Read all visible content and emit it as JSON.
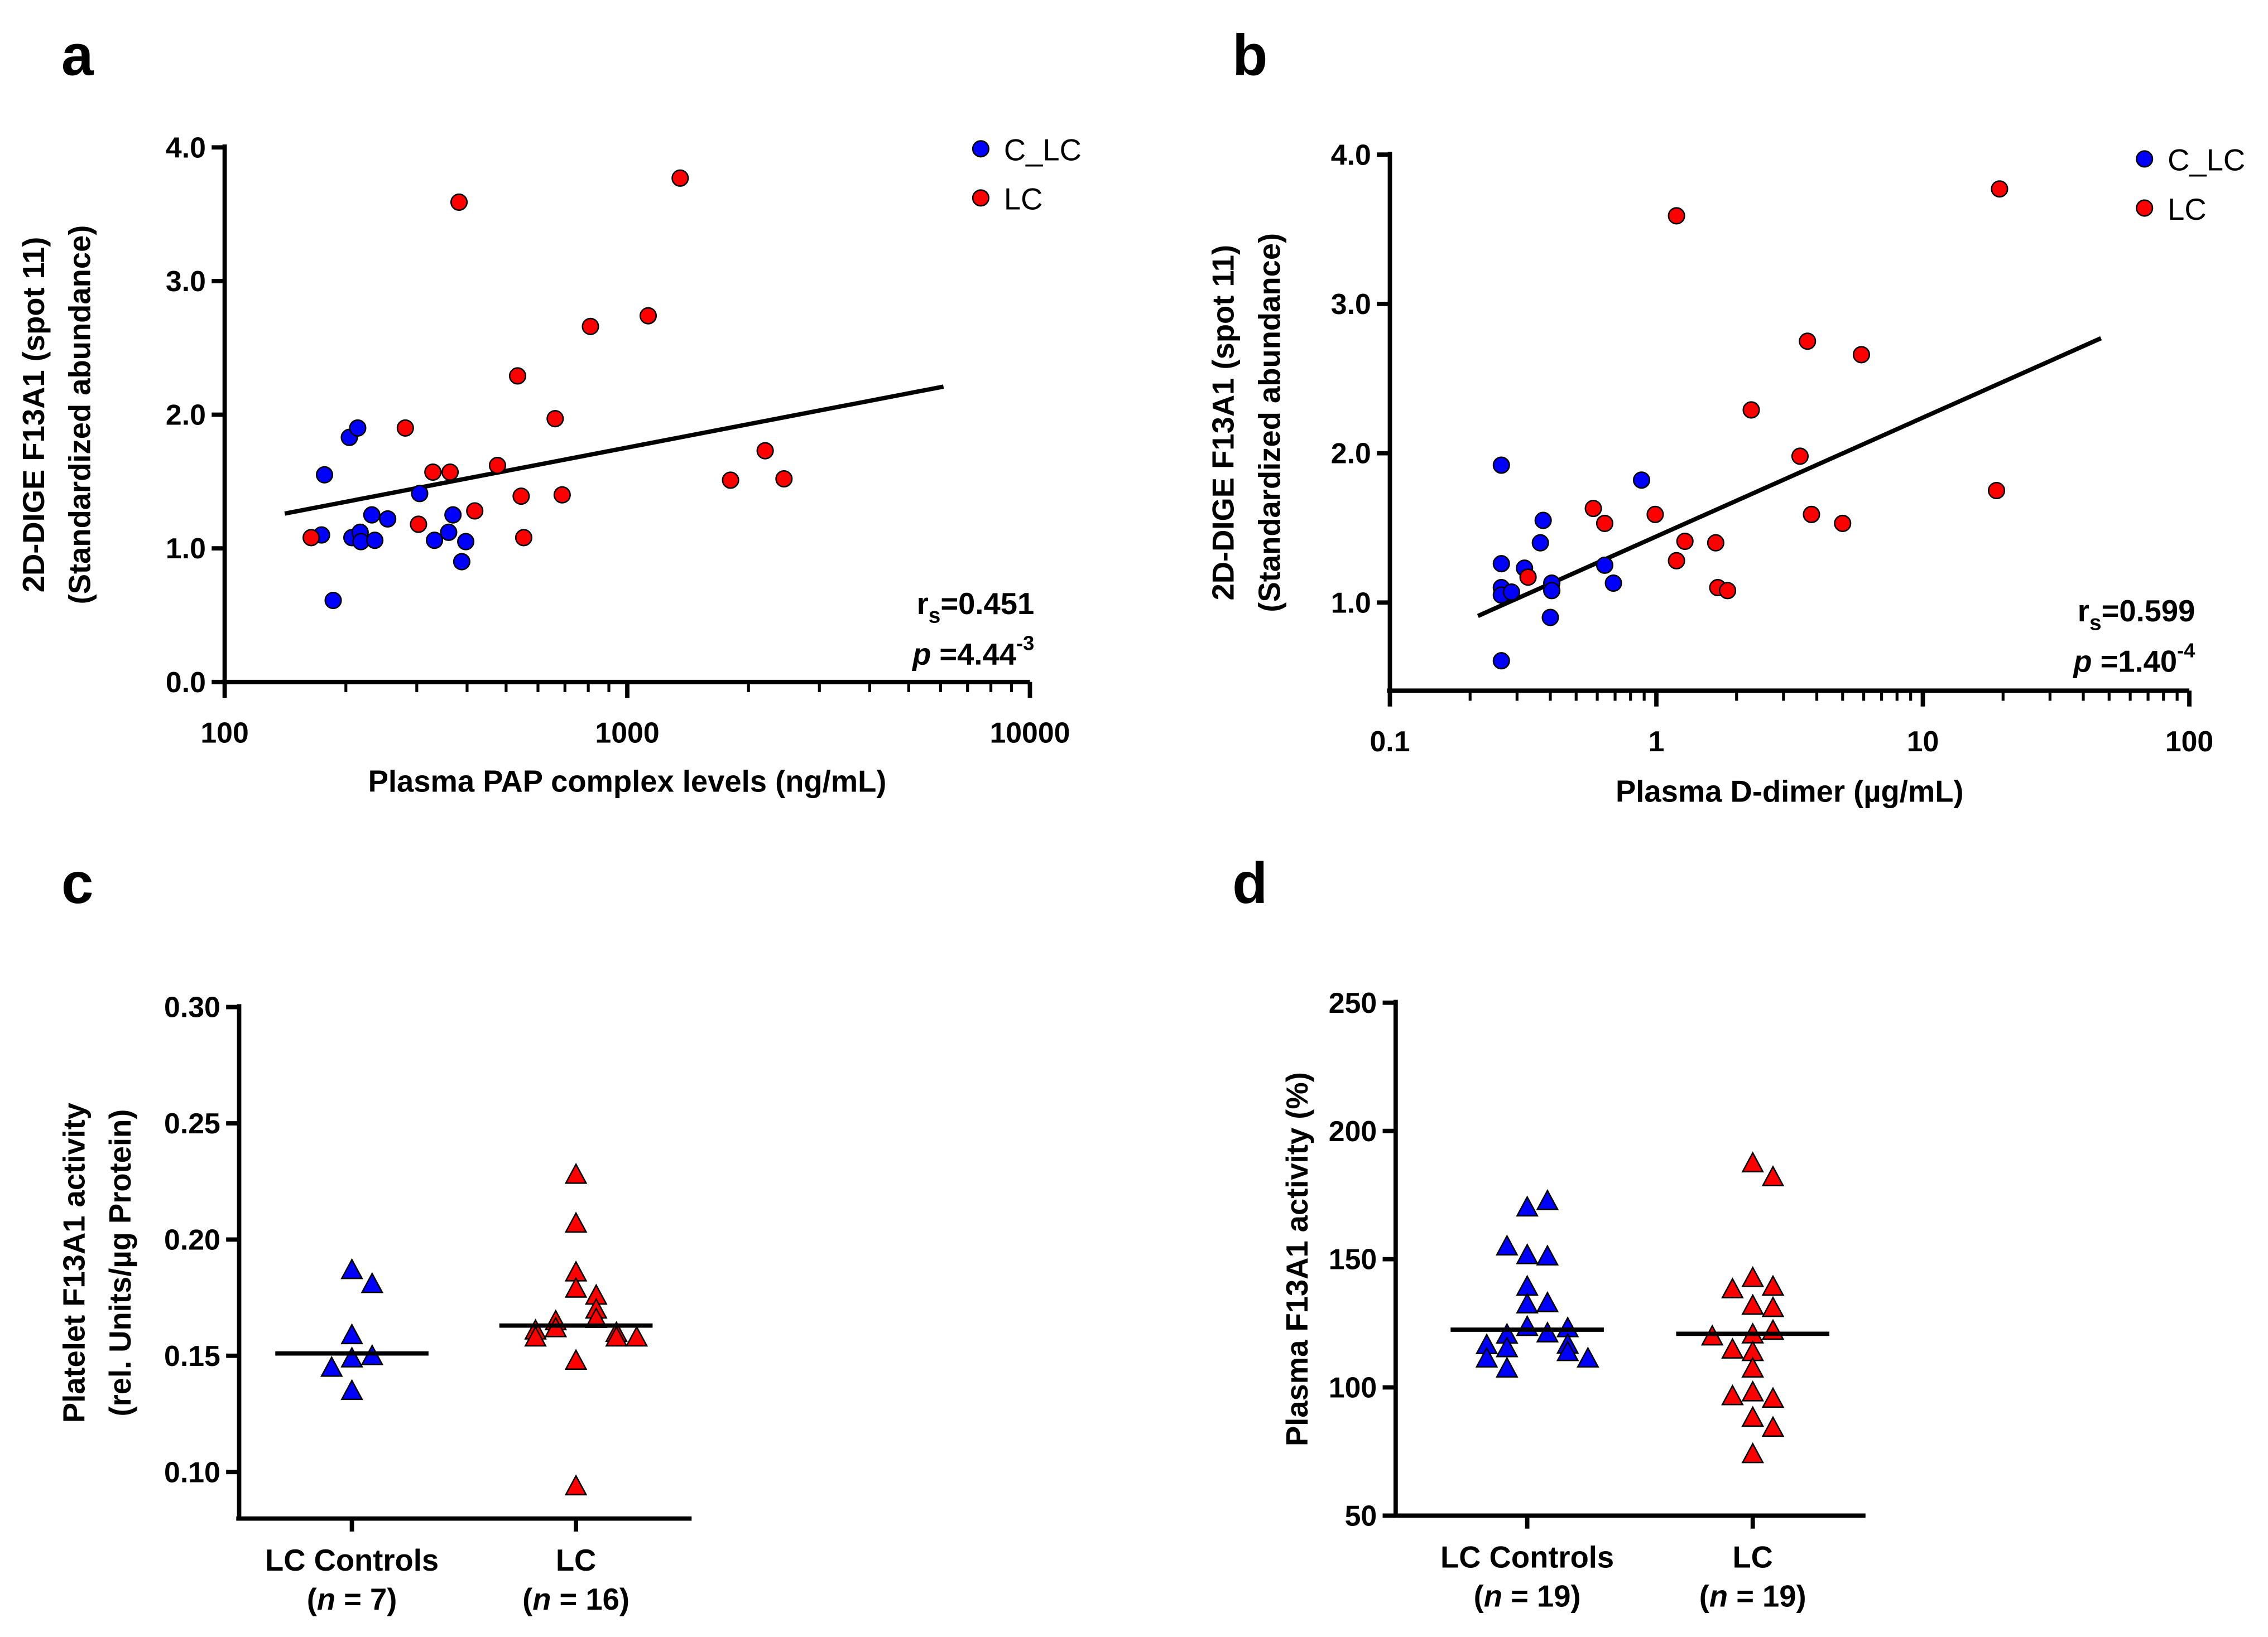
{
  "colors": {
    "control": "#0000ff",
    "lc": "#ff0000",
    "line": "#000000"
  },
  "chart_data": [
    {
      "panel_letter": "a",
      "type": "scatter",
      "xscale": "log",
      "xlim": [
        100,
        10000
      ],
      "ylim": [
        0,
        4.0
      ],
      "xticks": [
        "100",
        "1000",
        "10000"
      ],
      "xtick_values": [
        100,
        1000,
        10000
      ],
      "yticks": [
        "0.0",
        "1.0",
        "2.0",
        "3.0",
        "4.0"
      ],
      "ytick_values": [
        0,
        1,
        2,
        3,
        4
      ],
      "xlabel": "Plasma PAP complex levels (ng/mL)",
      "ylabel_line1": "2D-DIGE F13A1 (spot 11)",
      "ylabel_line2": "(Standardized abundance)",
      "legend": [
        "C_LC",
        "LC"
      ],
      "legend_position": "top-right",
      "stat": {
        "r_prefix": "r",
        "r_sub": "s",
        "r_value": "=0.451",
        "p_prefix": "p",
        "p_value": " =4.44",
        "p_exp": "-3"
      },
      "series": [
        {
          "name": "C_LC",
          "points": [
            [
              177,
              1.55
            ],
            [
              204,
              1.83
            ],
            [
              214,
              1.9
            ],
            [
              174,
              1.1
            ],
            [
              186,
              0.61
            ],
            [
              207,
              1.08
            ],
            [
              217,
              1.12
            ],
            [
              218,
              1.05
            ],
            [
              232,
              1.25
            ],
            [
              236,
              1.06
            ],
            [
              254,
              1.22
            ],
            [
              305,
              1.41
            ],
            [
              332,
              1.06
            ],
            [
              360,
              1.12
            ],
            [
              369,
              1.25
            ],
            [
              388,
              0.9
            ],
            [
              397,
              1.05
            ]
          ]
        },
        {
          "name": "LC",
          "points": [
            [
              164,
              1.08
            ],
            [
              281,
              1.9
            ],
            [
              303,
              1.18
            ],
            [
              329,
              1.57
            ],
            [
              363,
              1.57
            ],
            [
              382,
              3.59
            ],
            [
              418,
              1.28
            ],
            [
              476,
              1.62
            ],
            [
              534,
              2.29
            ],
            [
              545,
              1.39
            ],
            [
              553,
              1.08
            ],
            [
              662,
              1.97
            ],
            [
              689,
              1.4
            ],
            [
              810,
              2.66
            ],
            [
              1127,
              2.74
            ],
            [
              1353,
              3.77
            ],
            [
              1805,
              1.51
            ],
            [
              2200,
              1.73
            ],
            [
              2450,
              1.52
            ]
          ]
        }
      ],
      "regression": [
        [
          141,
          1.26
        ],
        [
          6100,
          2.21
        ]
      ]
    },
    {
      "panel_letter": "b",
      "type": "scatter",
      "xscale": "log",
      "xlim": [
        0.1,
        100
      ],
      "ylim": [
        0.41,
        4.0
      ],
      "xticks": [
        "0.1",
        "1",
        "10",
        "100"
      ],
      "xtick_values": [
        0.1,
        1,
        10,
        100
      ],
      "yticks": [
        "1.0",
        "2.0",
        "3.0",
        "4.0"
      ],
      "ytick_values": [
        1,
        2,
        3,
        4
      ],
      "xlabel": "Plasma D-dimer (µg/mL)",
      "ylabel_line1": "2D-DIGE F13A1 (spot 11)",
      "ylabel_line2": "(Standardized abundance)",
      "legend": [
        "C_LC",
        "LC"
      ],
      "legend_position": "top-right",
      "stat": {
        "r_prefix": "r",
        "r_sub": "s",
        "r_value": "=0.599",
        "p_prefix": "p",
        "p_value": " =1.40",
        "p_exp": "-4"
      },
      "series": [
        {
          "name": "C_LC",
          "points": [
            [
              0.262,
              1.92
            ],
            [
              0.262,
              1.26
            ],
            [
              0.262,
              1.1
            ],
            [
              0.262,
              1.05
            ],
            [
              0.286,
              1.07
            ],
            [
              0.32,
              1.23
            ],
            [
              0.376,
              1.55
            ],
            [
              0.367,
              1.4
            ],
            [
              0.405,
              1.13
            ],
            [
              0.405,
              1.08
            ],
            [
              0.4,
              0.9
            ],
            [
              0.64,
              1.25
            ],
            [
              0.69,
              1.13
            ],
            [
              0.88,
              1.82
            ],
            [
              0.262,
              0.61
            ]
          ]
        },
        {
          "name": "LC",
          "points": [
            [
              0.33,
              1.17
            ],
            [
              0.58,
              1.63
            ],
            [
              0.64,
              1.53
            ],
            [
              0.99,
              1.59
            ],
            [
              1.19,
              3.59
            ],
            [
              1.19,
              1.28
            ],
            [
              1.28,
              1.41
            ],
            [
              1.67,
              1.4
            ],
            [
              1.7,
              1.1
            ],
            [
              1.85,
              1.08
            ],
            [
              2.27,
              2.29
            ],
            [
              3.46,
              1.98
            ],
            [
              3.69,
              2.75
            ],
            [
              3.82,
              1.59
            ],
            [
              5.0,
              1.53
            ],
            [
              5.88,
              2.66
            ],
            [
              18.9,
              1.75
            ],
            [
              19.4,
              3.77
            ]
          ]
        }
      ],
      "regression": [
        [
          0.214,
          0.91
        ],
        [
          46.6,
          2.77
        ]
      ]
    },
    {
      "panel_letter": "c",
      "type": "scatter",
      "xscale": "category",
      "ylim": [
        0.08,
        0.3
      ],
      "yticks": [
        "0.10",
        "0.15",
        "0.20",
        "0.25",
        "0.30"
      ],
      "ytick_values": [
        0.1,
        0.15,
        0.2,
        0.25,
        0.3
      ],
      "ylabel_line1": "Platelet F13A1 activity",
      "ylabel_line2": "(rel. Units/µg Protein)",
      "categories": [
        {
          "label": "LC Controls",
          "n_prefix": "(",
          "n_italic": "n",
          "n_suffix": " = 7)"
        },
        {
          "label": "LC",
          "n_prefix": "(",
          "n_italic": "n",
          "n_suffix": " = 16)"
        }
      ],
      "series": [
        {
          "name": "LC Controls",
          "values": [
            0.187,
            0.181,
            0.159,
            0.149,
            0.15,
            0.145,
            0.135
          ],
          "center_line": 0.151
        },
        {
          "name": "LC",
          "values": [
            0.228,
            0.207,
            0.186,
            0.179,
            0.176,
            0.17,
            0.166,
            0.165,
            0.162,
            0.16,
            0.161,
            0.158,
            0.158,
            0.158,
            0.148,
            0.094
          ],
          "center_line": 0.163
        }
      ]
    },
    {
      "panel_letter": "d",
      "type": "scatter",
      "xscale": "category",
      "ylim": [
        50,
        250
      ],
      "yticks": [
        "50",
        "100",
        "150",
        "200",
        "250"
      ],
      "ytick_values": [
        50,
        100,
        150,
        200,
        250
      ],
      "ylabel_line1": "Plasma F13A1 activity (%)",
      "ylabel_line2": "",
      "categories": [
        {
          "label": "LC Controls",
          "n_prefix": "(",
          "n_italic": "n",
          "n_suffix": " = 19)"
        },
        {
          "label": "LC",
          "n_prefix": "(",
          "n_italic": "n",
          "n_suffix": " = 19)"
        }
      ],
      "series": [
        {
          "name": "LC Controls",
          "values": [
            170.3,
            172.8,
            151.7,
            151.2,
            155.1,
            139.4,
            132.5,
            133.0,
            123.7,
            121.2,
            120.7,
            123.2,
            115.4,
            116.8,
            116.6,
            113.9,
            111.4,
            111.4,
            107.5
          ],
          "center_line": 122.5
        },
        {
          "name": "LC",
          "values": [
            187.5,
            182.1,
            142.8,
            139.4,
            138.4,
            132.0,
            131.1,
            120.8,
            122.2,
            113.9,
            114.9,
            107.5,
            98.2,
            95.7,
            96.7,
            88.3,
            84.4,
            74.1,
            120.0
          ],
          "center_line": 120.9
        }
      ]
    }
  ]
}
